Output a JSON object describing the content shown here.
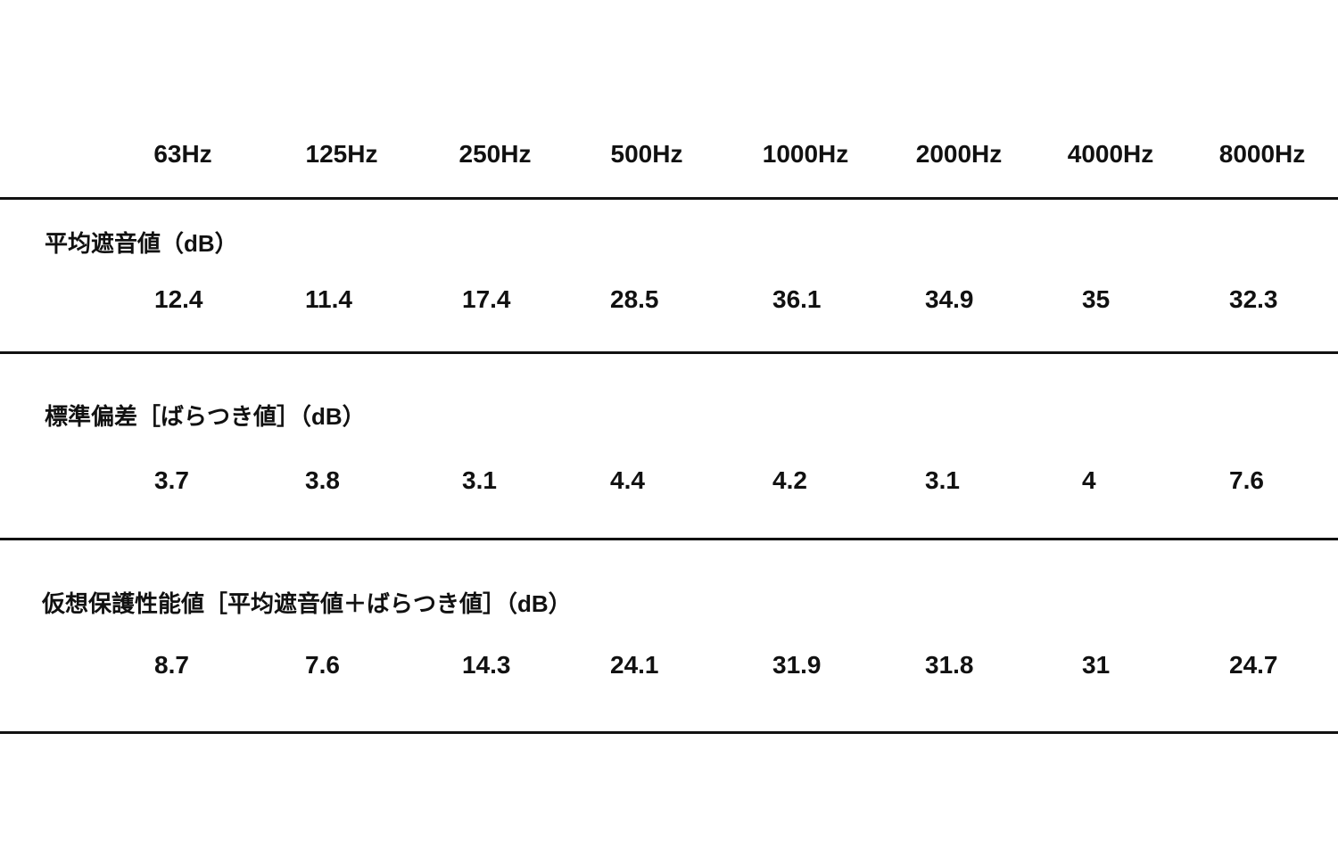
{
  "table": {
    "headers": [
      "63Hz",
      "125Hz",
      "250Hz",
      "500Hz",
      "1000Hz",
      "2000Hz",
      "4000Hz",
      "8000Hz"
    ],
    "sections": [
      {
        "label": "平均遮音値（dB）",
        "values": [
          12.4,
          11.4,
          17.4,
          28.5,
          36.1,
          34.9,
          35,
          32.3
        ]
      },
      {
        "label": "標準偏差［ばらつき値］（dB）",
        "values": [
          3.7,
          3.8,
          3.1,
          4.4,
          4.2,
          3.1,
          4,
          7.6
        ]
      },
      {
        "label": "仮想保護性能値［平均遮音値＋ばらつき値］（dB）",
        "values": [
          8.7,
          7.6,
          14.3,
          24.1,
          31.9,
          31.8,
          31,
          24.7
        ]
      }
    ]
  }
}
